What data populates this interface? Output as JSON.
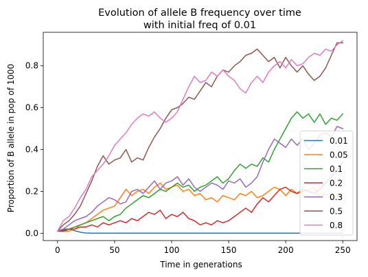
{
  "chart_data": {
    "type": "line",
    "title_line1": "Evolution of allele B frequency over time",
    "title_line2": "with initial freq of 0.01",
    "xlabel": "Time in generations",
    "ylabel": "Proportion of B allele in pop of 1000",
    "xlim": [
      -12.5,
      262.5
    ],
    "ylim": [
      -0.035,
      0.96
    ],
    "xticks": [
      0,
      50,
      100,
      150,
      200,
      250
    ],
    "xtick_labels": [
      "0",
      "50",
      "100",
      "150",
      "200",
      "250"
    ],
    "yticks": [
      0.0,
      0.2,
      0.4,
      0.6,
      0.8
    ],
    "ytick_labels": [
      "0.0",
      "0.2",
      "0.4",
      "0.6",
      "0.8"
    ],
    "grid": false,
    "legend_position": "lower-right",
    "series": [
      {
        "name": "0.01",
        "color": "#1f77b4",
        "x": [
          0,
          5,
          10,
          15,
          18,
          20,
          22,
          25,
          30,
          40,
          60,
          100,
          150,
          200,
          250
        ],
        "y": [
          0.01,
          0.015,
          0.02,
          0.012,
          0.008,
          0.005,
          0.003,
          0.001,
          0,
          0,
          0,
          0,
          0,
          0,
          0
        ]
      },
      {
        "name": "0.05",
        "color": "#ff7f0e",
        "x": [
          0,
          5,
          10,
          15,
          20,
          25,
          30,
          35,
          40,
          45,
          50,
          55,
          60,
          65,
          70,
          75,
          80,
          85,
          90,
          95,
          100,
          105,
          110,
          115,
          120,
          125,
          130,
          135,
          140,
          145,
          150,
          155,
          160,
          165,
          170,
          175,
          180,
          185,
          190,
          195,
          200,
          205,
          210,
          215,
          220,
          225,
          230,
          235,
          240,
          245,
          250
        ],
        "y": [
          0.01,
          0.01,
          0.01,
          0.02,
          0.04,
          0.05,
          0.07,
          0.09,
          0.11,
          0.12,
          0.13,
          0.17,
          0.21,
          0.18,
          0.2,
          0.21,
          0.19,
          0.22,
          0.24,
          0.21,
          0.22,
          0.23,
          0.2,
          0.21,
          0.18,
          0.19,
          0.16,
          0.17,
          0.15,
          0.18,
          0.17,
          0.16,
          0.19,
          0.18,
          0.2,
          0.17,
          0.18,
          0.2,
          0.22,
          0.21,
          0.18,
          0.21,
          0.19,
          0.2,
          0.21,
          0.22,
          0.17,
          0.19,
          0.16,
          0.18,
          0.17
        ]
      },
      {
        "name": "0.1",
        "color": "#2ca02c",
        "x": [
          0,
          5,
          10,
          15,
          20,
          25,
          30,
          35,
          40,
          45,
          50,
          55,
          60,
          65,
          70,
          75,
          80,
          85,
          90,
          95,
          100,
          105,
          110,
          115,
          120,
          125,
          130,
          135,
          140,
          145,
          150,
          155,
          160,
          165,
          170,
          175,
          180,
          185,
          190,
          195,
          200,
          205,
          210,
          215,
          220,
          225,
          230,
          235,
          240,
          245,
          250
        ],
        "y": [
          0.01,
          0.02,
          0.02,
          0.03,
          0.04,
          0.05,
          0.06,
          0.07,
          0.08,
          0.06,
          0.08,
          0.09,
          0.12,
          0.14,
          0.16,
          0.18,
          0.17,
          0.19,
          0.21,
          0.2,
          0.22,
          0.24,
          0.22,
          0.23,
          0.2,
          0.22,
          0.23,
          0.25,
          0.27,
          0.24,
          0.26,
          0.3,
          0.33,
          0.31,
          0.33,
          0.32,
          0.36,
          0.34,
          0.4,
          0.45,
          0.5,
          0.55,
          0.58,
          0.55,
          0.57,
          0.53,
          0.57,
          0.52,
          0.55,
          0.54,
          0.57
        ]
      },
      {
        "name": "0.2",
        "color": "#d62728",
        "x": [
          0,
          5,
          10,
          15,
          20,
          25,
          30,
          35,
          40,
          45,
          50,
          55,
          60,
          65,
          70,
          75,
          80,
          85,
          90,
          95,
          100,
          105,
          110,
          115,
          120,
          125,
          130,
          135,
          140,
          145,
          150,
          155,
          160,
          165,
          170,
          175,
          180,
          185,
          190,
          195,
          200,
          205,
          210,
          215,
          220,
          225,
          230,
          235,
          240,
          245,
          250
        ],
        "y": [
          0.01,
          0.01,
          0.02,
          0.02,
          0.03,
          0.03,
          0.04,
          0.03,
          0.05,
          0.04,
          0.05,
          0.06,
          0.05,
          0.07,
          0.06,
          0.08,
          0.1,
          0.09,
          0.11,
          0.07,
          0.09,
          0.08,
          0.1,
          0.07,
          0.06,
          0.04,
          0.05,
          0.04,
          0.06,
          0.05,
          0.06,
          0.08,
          0.1,
          0.12,
          0.1,
          0.14,
          0.17,
          0.15,
          0.18,
          0.21,
          0.22,
          0.2,
          0.19,
          0.21,
          0.2,
          0.19,
          0.21,
          0.24,
          0.27,
          0.3,
          0.34
        ]
      },
      {
        "name": "0.3",
        "color": "#9467bd",
        "x": [
          0,
          5,
          10,
          15,
          20,
          25,
          30,
          35,
          40,
          45,
          50,
          55,
          60,
          65,
          70,
          75,
          80,
          85,
          90,
          95,
          100,
          105,
          110,
          115,
          120,
          125,
          130,
          135,
          140,
          145,
          150,
          155,
          160,
          165,
          170,
          175,
          180,
          185,
          190,
          195,
          200,
          205,
          210,
          215,
          220,
          225,
          230,
          235,
          240,
          245,
          250
        ],
        "y": [
          0.01,
          0.02,
          0.04,
          0.06,
          0.07,
          0.08,
          0.1,
          0.13,
          0.15,
          0.17,
          0.16,
          0.14,
          0.15,
          0.2,
          0.21,
          0.19,
          0.22,
          0.25,
          0.21,
          0.24,
          0.25,
          0.27,
          0.23,
          0.26,
          0.22,
          0.2,
          0.22,
          0.24,
          0.23,
          0.21,
          0.25,
          0.24,
          0.26,
          0.22,
          0.24,
          0.27,
          0.34,
          0.4,
          0.45,
          0.43,
          0.41,
          0.45,
          0.42,
          0.45,
          0.4,
          0.43,
          0.47,
          0.48,
          0.46,
          0.51,
          0.5
        ]
      },
      {
        "name": "0.5",
        "color": "#8c564b",
        "x": [
          0,
          5,
          10,
          15,
          20,
          25,
          30,
          35,
          40,
          45,
          50,
          55,
          60,
          65,
          70,
          75,
          80,
          85,
          90,
          95,
          100,
          105,
          110,
          115,
          120,
          125,
          130,
          135,
          140,
          145,
          150,
          155,
          160,
          165,
          170,
          175,
          180,
          185,
          190,
          195,
          200,
          205,
          210,
          215,
          220,
          225,
          230,
          235,
          240,
          245,
          250
        ],
        "y": [
          0.01,
          0.04,
          0.06,
          0.09,
          0.13,
          0.19,
          0.25,
          0.32,
          0.37,
          0.33,
          0.35,
          0.36,
          0.4,
          0.34,
          0.36,
          0.35,
          0.41,
          0.46,
          0.5,
          0.55,
          0.59,
          0.6,
          0.62,
          0.65,
          0.64,
          0.68,
          0.72,
          0.7,
          0.75,
          0.78,
          0.77,
          0.8,
          0.82,
          0.85,
          0.86,
          0.88,
          0.85,
          0.82,
          0.84,
          0.79,
          0.84,
          0.8,
          0.77,
          0.8,
          0.76,
          0.73,
          0.75,
          0.79,
          0.85,
          0.91,
          0.91
        ]
      },
      {
        "name": "0.8",
        "color": "#e377c2",
        "x": [
          0,
          5,
          10,
          15,
          20,
          25,
          30,
          35,
          40,
          45,
          50,
          55,
          60,
          65,
          70,
          75,
          80,
          85,
          90,
          95,
          100,
          105,
          110,
          115,
          120,
          125,
          130,
          135,
          140,
          145,
          150,
          155,
          160,
          165,
          170,
          175,
          180,
          185,
          190,
          195,
          200,
          205,
          210,
          215,
          220,
          225,
          230,
          235,
          240,
          245,
          250
        ],
        "y": [
          0.01,
          0.06,
          0.08,
          0.12,
          0.17,
          0.21,
          0.27,
          0.3,
          0.33,
          0.37,
          0.42,
          0.45,
          0.48,
          0.52,
          0.55,
          0.57,
          0.56,
          0.58,
          0.55,
          0.53,
          0.55,
          0.58,
          0.64,
          0.7,
          0.75,
          0.72,
          0.73,
          0.77,
          0.75,
          0.78,
          0.75,
          0.73,
          0.69,
          0.67,
          0.72,
          0.75,
          0.72,
          0.77,
          0.8,
          0.82,
          0.79,
          0.83,
          0.8,
          0.81,
          0.84,
          0.86,
          0.85,
          0.88,
          0.87,
          0.9,
          0.92
        ]
      }
    ]
  }
}
